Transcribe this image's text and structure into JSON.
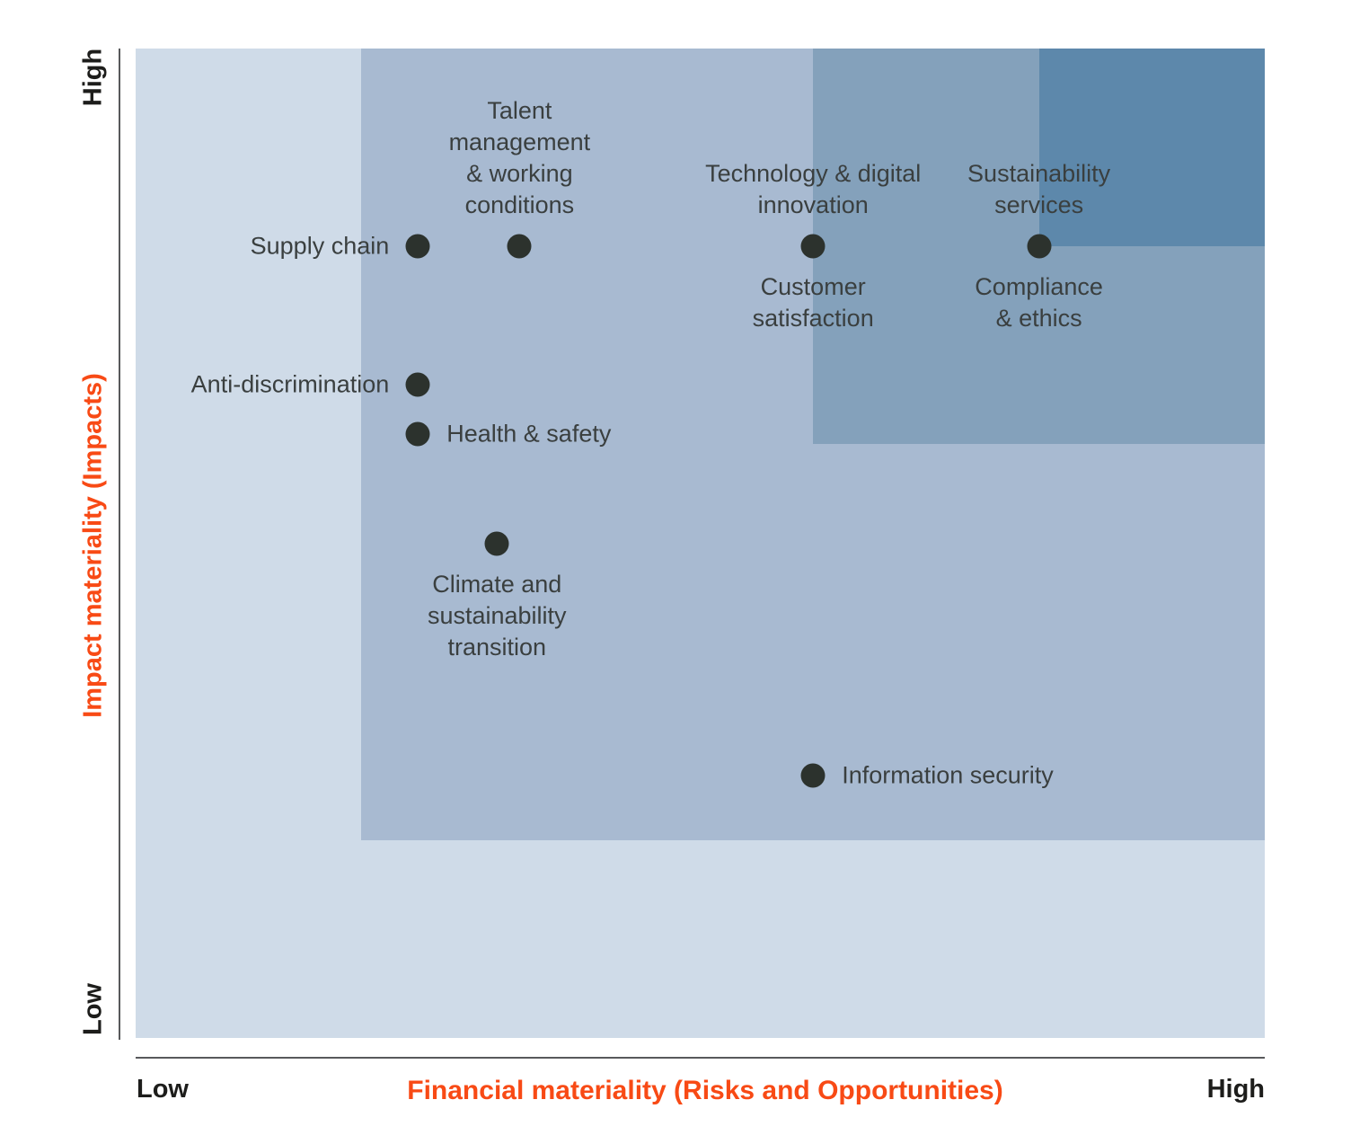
{
  "figure": {
    "y_axis": {
      "title": "Impact materiality (Impacts)",
      "top_label": "High",
      "bottom_label": "Low"
    },
    "x_axis": {
      "title": "Financial materiality (Risks and Opportunities)",
      "left_label": "Low",
      "right_label": "High"
    }
  },
  "colors": {
    "accent_orange": "#f84a15",
    "axis_text": "#1d1d1b",
    "label_text": "#3a3f3f",
    "dot": "#2c322d",
    "axis_line": "#58595b",
    "region_l1": "#cfdbe8",
    "region_l2": "#a8bad1",
    "region_l3": "#84a1bb",
    "region_l4": "#5d88ab"
  },
  "chart_data": {
    "type": "scatter",
    "title": "",
    "xlabel": "Financial materiality (Risks and Opportunities)",
    "ylabel": "Impact materiality (Impacts)",
    "x_range_labels": [
      "Low",
      "High"
    ],
    "y_range_labels": [
      "Low",
      "High"
    ],
    "axis_scale": "normalized 0-1 (Low=0, High=1)",
    "grid": false,
    "legend": "none",
    "background_bands": [
      {
        "name": "band-base",
        "x_from": 0.0,
        "y_from": 0.0,
        "color_key": "region_l1"
      },
      {
        "name": "band-medium",
        "x_from": 0.2,
        "y_from": 0.2,
        "color_key": "region_l2"
      },
      {
        "name": "band-high",
        "x_from": 0.6,
        "y_from": 0.6,
        "color_key": "region_l3"
      },
      {
        "name": "band-very-high",
        "x_from": 0.8,
        "y_from": 0.8,
        "color_key": "region_l4"
      }
    ],
    "points": [
      {
        "name": "supply-chain",
        "label": "Supply chain",
        "x": 0.25,
        "y": 0.8,
        "dot": true,
        "anchor": "left"
      },
      {
        "name": "talent-management",
        "label": "Talent\nmanagement\n& working\nconditions",
        "x": 0.34,
        "y": 0.8,
        "dot": true,
        "anchor": "above"
      },
      {
        "name": "technology-digital-innovation",
        "label": "Technology & digital\ninnovation",
        "x": 0.6,
        "y": 0.8,
        "dot": true,
        "anchor": "above"
      },
      {
        "name": "customer-satisfaction",
        "label": "Customer\nsatisfaction",
        "x": 0.6,
        "y": 0.8,
        "dot": false,
        "anchor": "below"
      },
      {
        "name": "sustainability-services",
        "label": "Sustainability\nservices",
        "x": 0.8,
        "y": 0.8,
        "dot": true,
        "anchor": "above"
      },
      {
        "name": "compliance-ethics",
        "label": "Compliance\n& ethics",
        "x": 0.8,
        "y": 0.8,
        "dot": false,
        "anchor": "below"
      },
      {
        "name": "anti-discrimination",
        "label": "Anti-discrimination",
        "x": 0.25,
        "y": 0.66,
        "dot": true,
        "anchor": "left"
      },
      {
        "name": "health-safety",
        "label": "Health & safety",
        "x": 0.25,
        "y": 0.61,
        "dot": true,
        "anchor": "right"
      },
      {
        "name": "climate-sustainability-transition",
        "label": "Climate and\nsustainability\ntransition",
        "x": 0.32,
        "y": 0.5,
        "dot": true,
        "anchor": "below"
      },
      {
        "name": "information-security",
        "label": "Information security",
        "x": 0.6,
        "y": 0.265,
        "dot": true,
        "anchor": "right"
      }
    ]
  }
}
